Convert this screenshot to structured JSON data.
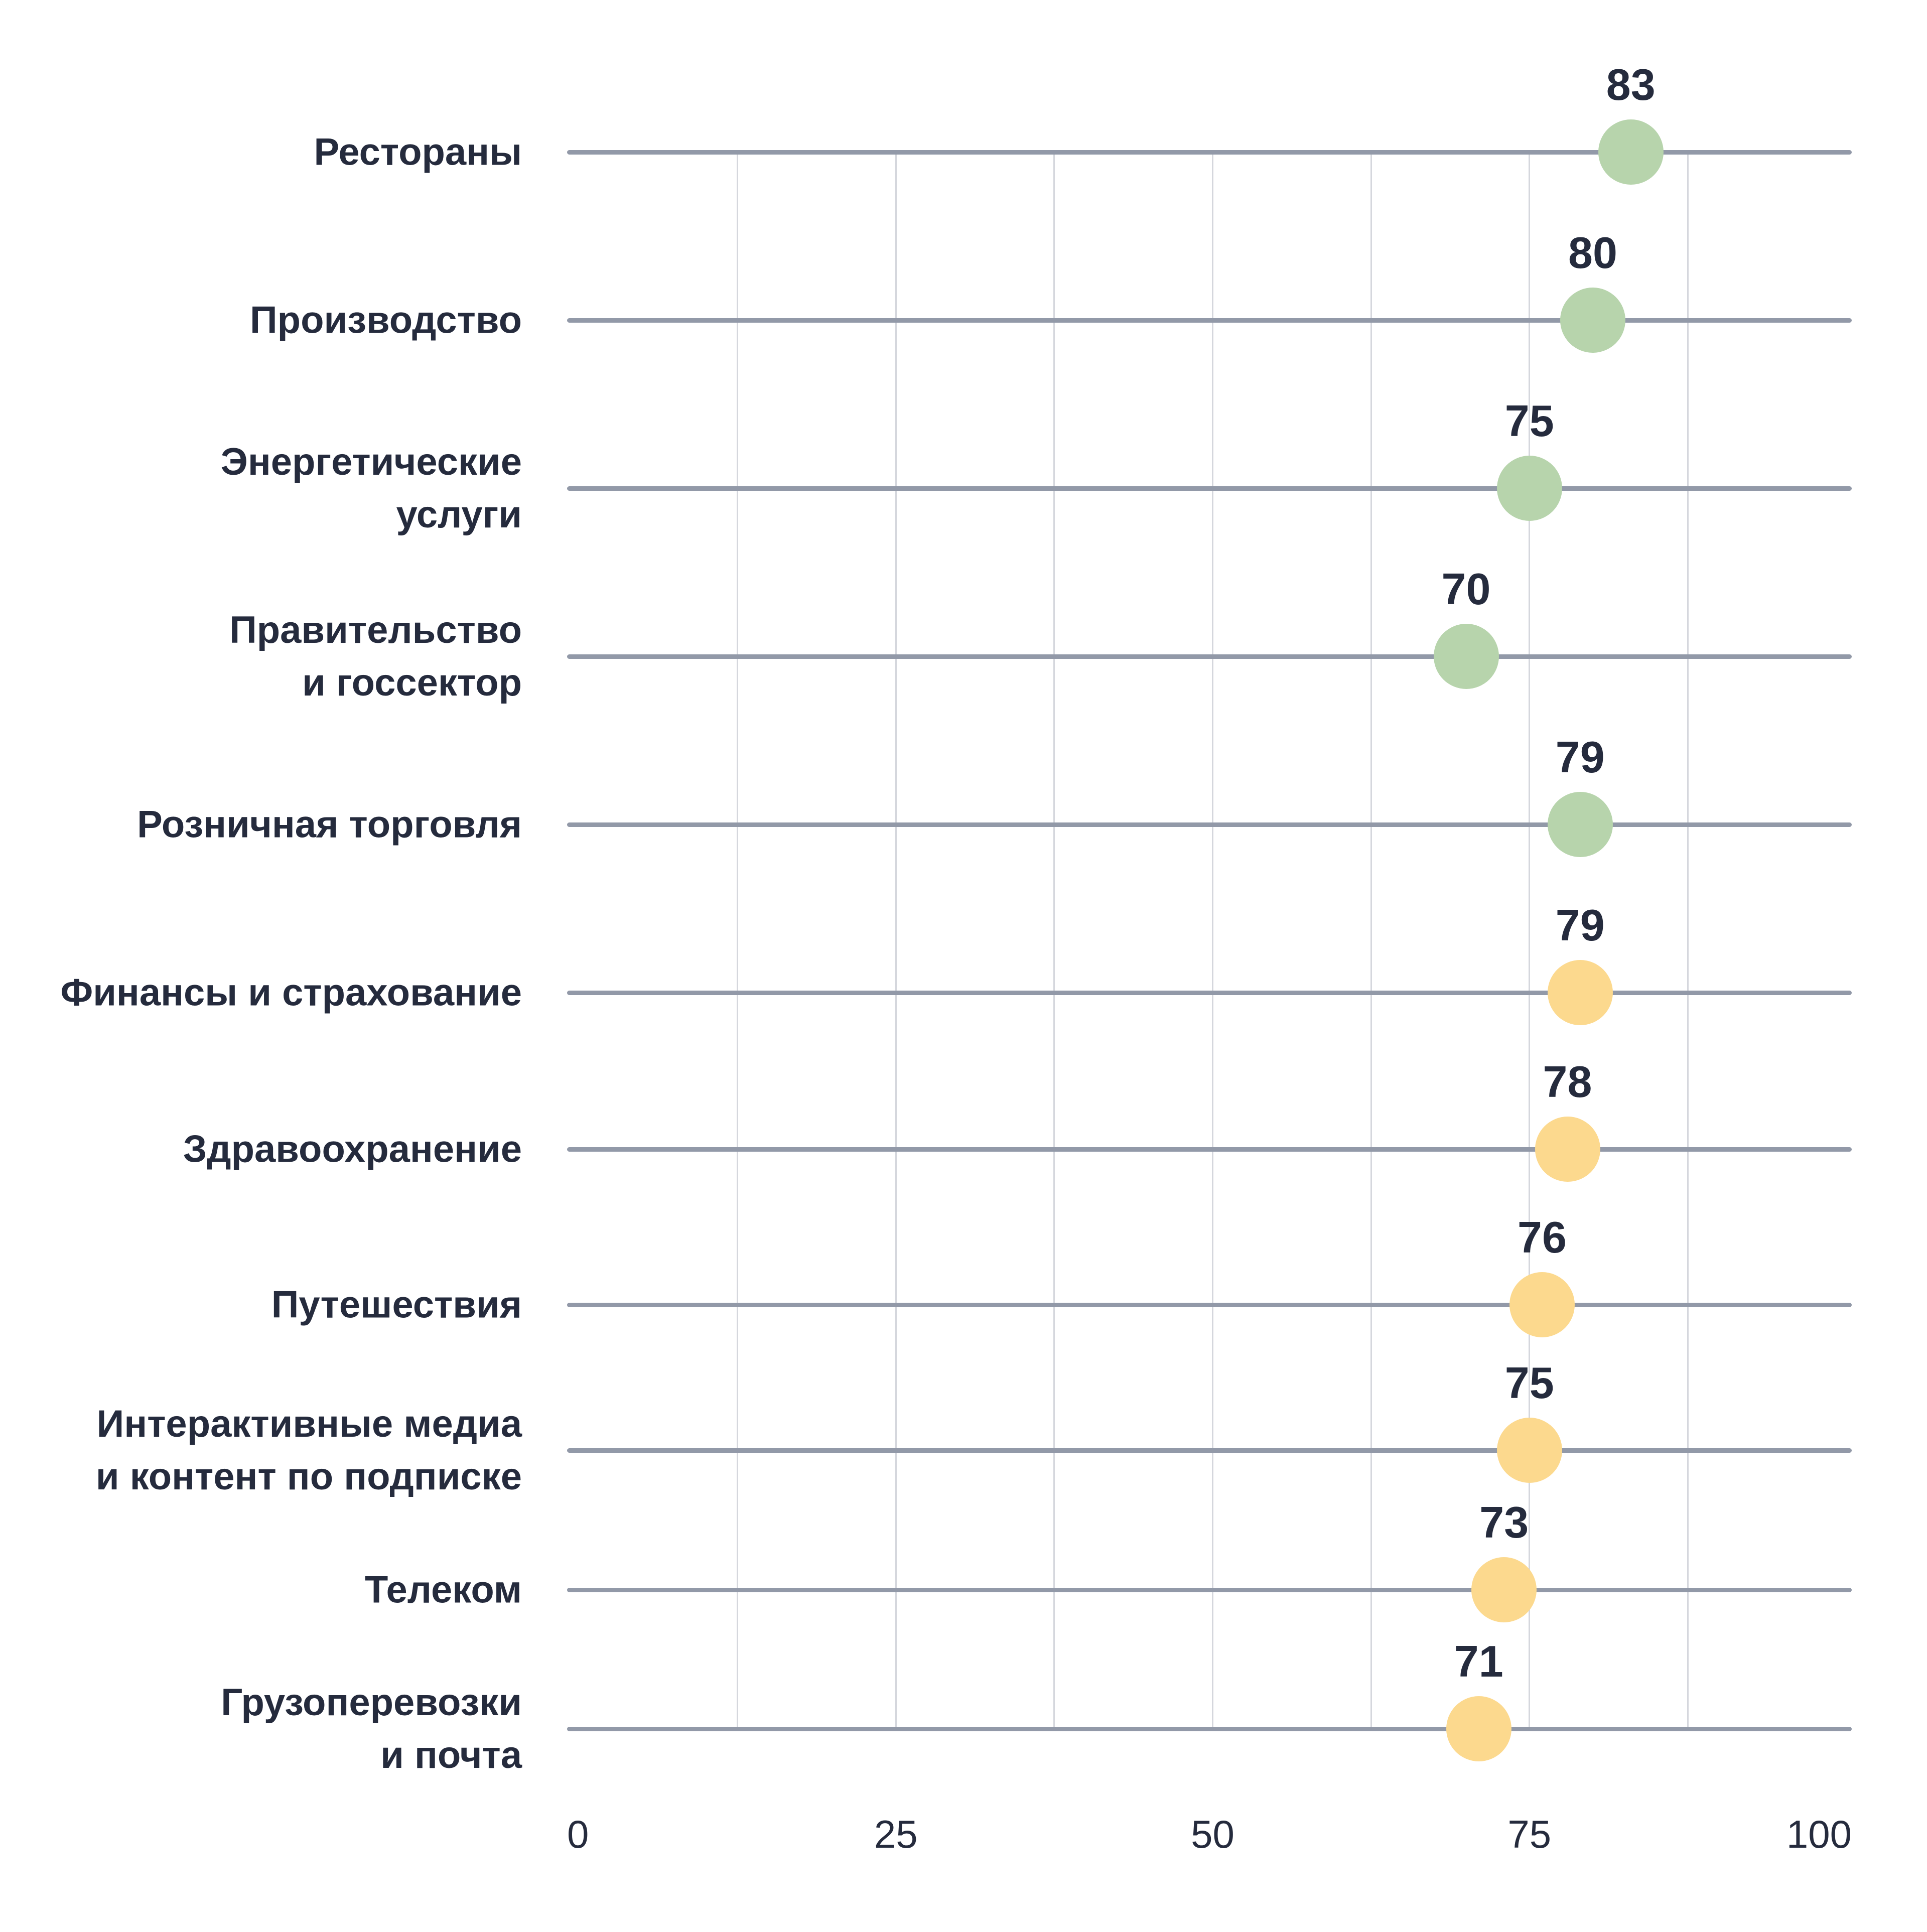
{
  "chart_data": {
    "type": "scatter",
    "subtype": "dot-plot",
    "title": "",
    "xlabel": "",
    "ylabel": "",
    "categories": [
      "Рестораны",
      "Производство",
      "Энергетические\nуслуги",
      "Правительство\nи госсектор",
      "Розничная торговля",
      "Финансы и страхование",
      "Здравоохранение",
      "Путешествия",
      "Интерактивные медиа\nи контент по подписке",
      "Телеком",
      "Грузоперевозки\nи почта"
    ],
    "values": [
      83,
      80,
      75,
      70,
      79,
      79,
      78,
      76,
      75,
      73,
      71
    ],
    "groups": [
      "green",
      "green",
      "green",
      "green",
      "green",
      "yellow",
      "yellow",
      "yellow",
      "yellow",
      "yellow",
      "yellow"
    ],
    "xlim": [
      0,
      100
    ],
    "x_ticks": [
      0,
      25,
      50,
      75,
      100
    ],
    "grid": "vertical gridlines every 12.5 units; one horizontal baseline per category",
    "legend": "none",
    "colors": {
      "green": "#b7d4ac",
      "yellow": "#fcd98e",
      "baseline": "#9299a8",
      "gridline": "#d5d7dd",
      "text": "#252b3d"
    }
  }
}
